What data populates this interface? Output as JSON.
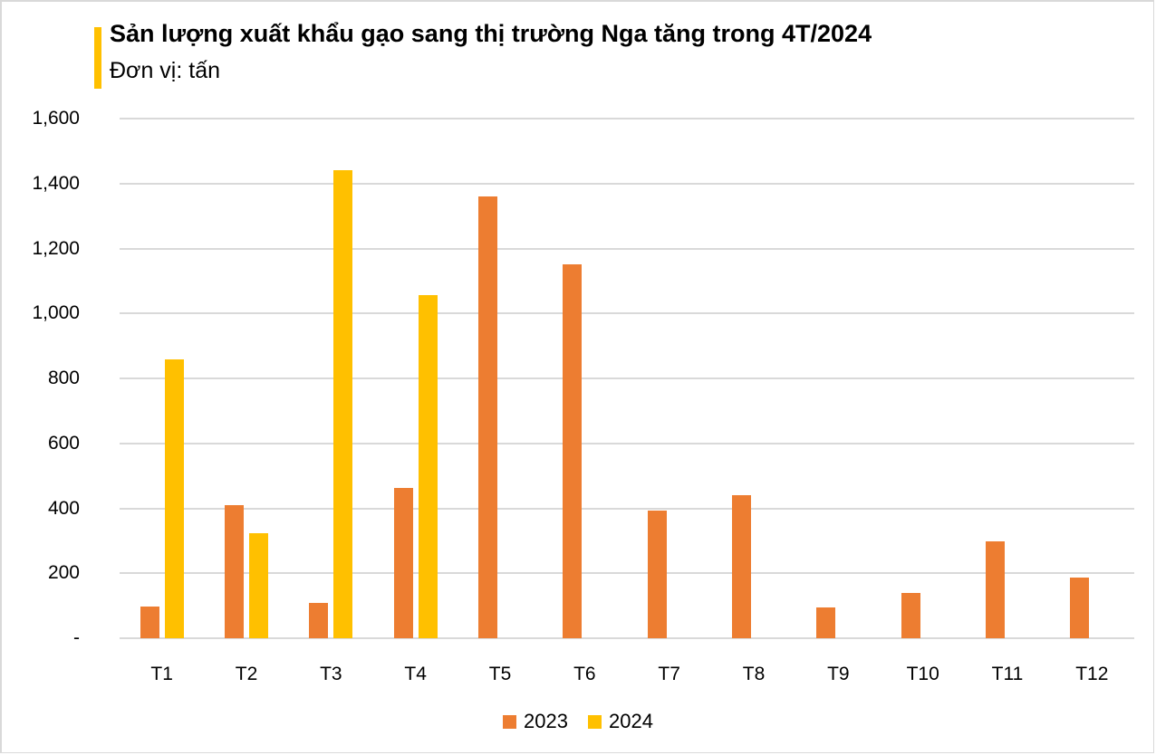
{
  "header": {
    "title": "Sản lượng xuất khẩu gạo sang thị trường Nga tăng trong 4T/2024",
    "subtitle": "Đơn vị: tấn",
    "accent_color": "#FFC000"
  },
  "y_axis": {
    "ticks": [
      "-",
      "200",
      "400",
      "600",
      "800",
      "1,000",
      "1,200",
      "1,400",
      "1,600"
    ]
  },
  "legend": {
    "items": [
      {
        "label": "2023",
        "color": "#ED7D31"
      },
      {
        "label": "2024",
        "color": "#FFC000"
      }
    ]
  },
  "chart_data": {
    "type": "bar",
    "title": "Sản lượng xuất khẩu gạo sang thị trường Nga tăng trong 4T/2024",
    "subtitle": "Đơn vị: tấn",
    "xlabel": "",
    "ylabel": "",
    "categories": [
      "T1",
      "T2",
      "T3",
      "T4",
      "T5",
      "T6",
      "T7",
      "T8",
      "T9",
      "T10",
      "T11",
      "T12"
    ],
    "series": [
      {
        "name": "2023",
        "color": "#ED7D31",
        "values": [
          98,
          410,
          109,
          463,
          1360,
          1151,
          393,
          440,
          95,
          139,
          298,
          187
        ]
      },
      {
        "name": "2024",
        "color": "#FFC000",
        "values": [
          859,
          323,
          1441,
          1056,
          null,
          null,
          null,
          null,
          null,
          null,
          null,
          null
        ]
      }
    ],
    "ylim": [
      0,
      1600
    ],
    "yticks": [
      0,
      200,
      400,
      600,
      800,
      1000,
      1200,
      1400,
      1600
    ],
    "grid": true,
    "legend_position": "bottom"
  }
}
